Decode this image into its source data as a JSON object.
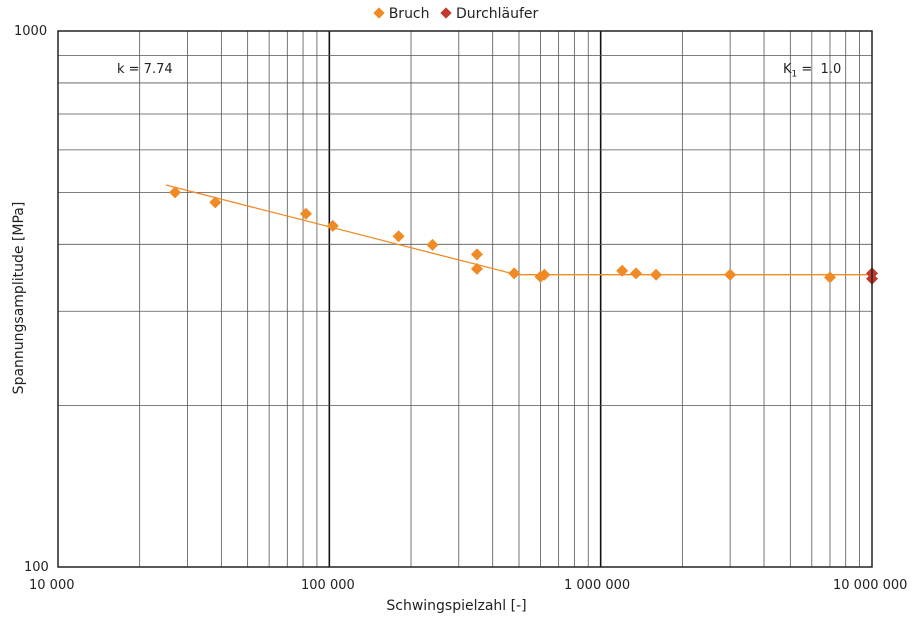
{
  "chart_data": {
    "type": "scatter",
    "x_scale": "log",
    "y_scale": "log",
    "xlabel": "Schwingspielzahl [-]",
    "ylabel": "Spannungsamplitude [MPa]",
    "xlim": [
      10000,
      10000000
    ],
    "ylim": [
      100,
      1000
    ],
    "x_ticks": [
      10000,
      100000,
      1000000,
      10000000
    ],
    "x_tick_labels": [
      "10 000",
      "100 000",
      "1 000 000",
      "10 000 000"
    ],
    "y_ticks": [
      100,
      1000
    ],
    "y_tick_labels": [
      "100",
      "1000"
    ],
    "grid": true,
    "legend_position": "top-center",
    "annotations": {
      "k_text": "k = 7.74",
      "k1_text": "K",
      "k1_sub": "1",
      "k1_value": " =  1.0"
    },
    "series": [
      {
        "name": "Bruch",
        "color": "#f08a24",
        "marker": "diamond",
        "points": [
          [
            27000,
            500
          ],
          [
            38000,
            479
          ],
          [
            82000,
            456
          ],
          [
            103000,
            433
          ],
          [
            180000,
            414
          ],
          [
            240000,
            399
          ],
          [
            350000,
            383
          ],
          [
            350000,
            360
          ],
          [
            480000,
            353
          ],
          [
            600000,
            348
          ],
          [
            620000,
            351
          ],
          [
            1200000,
            357
          ],
          [
            1350000,
            353
          ],
          [
            1600000,
            351
          ],
          [
            3000000,
            351
          ],
          [
            7000000,
            347
          ]
        ]
      },
      {
        "name": "Durchläufer",
        "color": "#c0392b",
        "marker": "diamond",
        "points": [
          [
            10000000,
            353
          ],
          [
            10000000,
            345
          ]
        ]
      }
    ],
    "fit_line": {
      "color": "#f08a24",
      "points": [
        [
          25000,
          516
        ],
        [
          490000,
          351
        ],
        [
          10000000,
          351
        ]
      ]
    }
  }
}
